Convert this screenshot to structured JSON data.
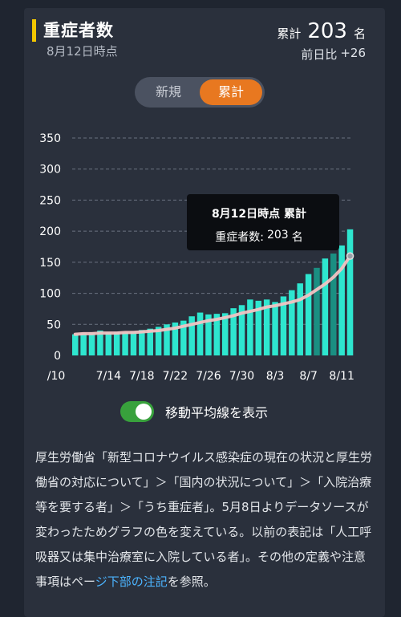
{
  "header": {
    "title": "重症者数",
    "subtitle": "8月12日時点",
    "total_label": "累計",
    "total_value": "203",
    "total_unit": "名",
    "diff_label": "前日比",
    "diff_value": "+26"
  },
  "toggle": {
    "new_label": "新規",
    "total_label": "累計",
    "selected": "累計"
  },
  "colors": {
    "accent": "#f2c600",
    "bar": "#2ee6cf",
    "bar_dark": "#1a8f82",
    "line": "#f2c3c3",
    "toggle_active": "#e87820",
    "switch_on": "#38a13c",
    "link": "#4cb4ff"
  },
  "tooltip": {
    "title": "8月12日時点 累計",
    "label": "重症者数:",
    "value": "203",
    "unit": "名"
  },
  "moving_average_switch": {
    "label": "移動平均線を表示",
    "on": true
  },
  "notes": {
    "text_main": "厚生労働省「新型コロナウイルス感染症の現在の状況と厚生労働省の対応について」＞「国内の状況について」＞「入院治療等を要する者」＞「うち重症者」。5月8日よりデータソースが変わったためグラフの色を変えている。以前の表記は「人工呼吸器又は集中治療室に入院している者」。その他の定義や注意事項はペー",
    "link_text": "ジ下部の注記",
    "text_end": "を参照。"
  },
  "chart_data": {
    "type": "bar",
    "ylim": [
      0,
      350
    ],
    "yticks": [
      "0",
      "50",
      "100",
      "150",
      "200",
      "250",
      "300",
      "350"
    ],
    "xtick_labels": [
      "/10",
      "7/14",
      "7/18",
      "7/22",
      "7/26",
      "7/30",
      "8/3",
      "8/7",
      "8/11"
    ],
    "grid": true,
    "categories": [
      "7/10",
      "7/11",
      "7/12",
      "7/13",
      "7/14",
      "7/15",
      "7/16",
      "7/17",
      "7/18",
      "7/19",
      "7/20",
      "7/21",
      "7/22",
      "7/23",
      "7/24",
      "7/25",
      "7/26",
      "7/27",
      "7/28",
      "7/29",
      "7/30",
      "7/31",
      "8/1",
      "8/2",
      "8/3",
      "8/4",
      "8/5",
      "8/6",
      "8/7",
      "8/8",
      "8/9",
      "8/10",
      "8/11",
      "8/12"
    ],
    "values": [
      34,
      36,
      37,
      40,
      37,
      38,
      37,
      39,
      41,
      43,
      46,
      50,
      53,
      56,
      63,
      69,
      66,
      67,
      68,
      76,
      81,
      90,
      88,
      90,
      86,
      95,
      105,
      116,
      131,
      141,
      156,
      164,
      177,
      203
    ],
    "moving_average": [
      34,
      35,
      35,
      36,
      36,
      36,
      37,
      37,
      38,
      39,
      40,
      42,
      44,
      47,
      50,
      53,
      56,
      58,
      61,
      64,
      68,
      71,
      74,
      78,
      80,
      83,
      86,
      90,
      97,
      106,
      115,
      126,
      140,
      160
    ]
  }
}
